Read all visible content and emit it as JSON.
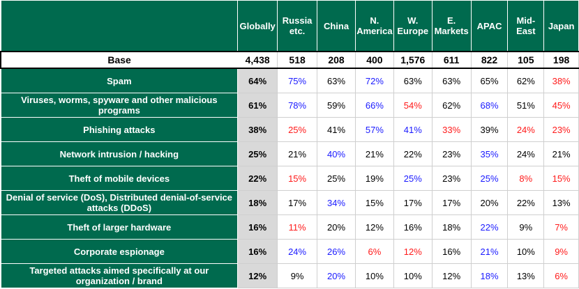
{
  "header": {
    "columns": [
      "Globally",
      "Russia etc.",
      "China",
      "N. America",
      "W. Europe",
      "E. Markets",
      "APAC",
      "Mid-East",
      "Japan"
    ]
  },
  "base": {
    "label": "Base",
    "values": [
      "4,438",
      "518",
      "208",
      "400",
      "1,576",
      "611",
      "822",
      "105",
      "198"
    ]
  },
  "rows": [
    {
      "label": "Spam",
      "values": [
        "64%",
        "75%",
        "63%",
        "72%",
        "63%",
        "63%",
        "65%",
        "62%",
        "38%"
      ],
      "status": [
        "n",
        "h",
        "n",
        "h",
        "n",
        "n",
        "n",
        "n",
        "l"
      ]
    },
    {
      "label": "Viruses, worms, spyware and other malicious programs",
      "values": [
        "61%",
        "78%",
        "59%",
        "66%",
        "54%",
        "62%",
        "68%",
        "51%",
        "45%"
      ],
      "status": [
        "n",
        "h",
        "n",
        "h",
        "l",
        "n",
        "h",
        "n",
        "l"
      ]
    },
    {
      "label": "Phishing attacks",
      "values": [
        "38%",
        "25%",
        "41%",
        "57%",
        "41%",
        "33%",
        "39%",
        "24%",
        "23%"
      ],
      "status": [
        "n",
        "l",
        "n",
        "h",
        "h",
        "l",
        "n",
        "l",
        "l"
      ]
    },
    {
      "label": "Network intrusion / hacking",
      "values": [
        "25%",
        "21%",
        "40%",
        "21%",
        "22%",
        "23%",
        "35%",
        "24%",
        "21%"
      ],
      "status": [
        "n",
        "n",
        "h",
        "n",
        "n",
        "n",
        "h",
        "n",
        "n"
      ]
    },
    {
      "label": "Theft of mobile devices",
      "values": [
        "22%",
        "15%",
        "25%",
        "19%",
        "25%",
        "23%",
        "25%",
        "8%",
        "15%"
      ],
      "status": [
        "n",
        "l",
        "n",
        "n",
        "h",
        "n",
        "h",
        "l",
        "l"
      ]
    },
    {
      "label": "Denial of service (DoS), Distributed denial-of-service attacks (DDoS)",
      "values": [
        "18%",
        "17%",
        "34%",
        "15%",
        "17%",
        "17%",
        "20%",
        "22%",
        "13%"
      ],
      "status": [
        "n",
        "n",
        "h",
        "n",
        "n",
        "n",
        "n",
        "n",
        "n"
      ]
    },
    {
      "label": "Theft of larger hardware",
      "values": [
        "16%",
        "11%",
        "20%",
        "12%",
        "16%",
        "18%",
        "22%",
        "9%",
        "7%"
      ],
      "status": [
        "n",
        "l",
        "n",
        "n",
        "n",
        "n",
        "h",
        "n",
        "l"
      ]
    },
    {
      "label": "Corporate espionage",
      "values": [
        "16%",
        "24%",
        "26%",
        "6%",
        "12%",
        "16%",
        "21%",
        "10%",
        "9%"
      ],
      "status": [
        "n",
        "h",
        "h",
        "l",
        "l",
        "n",
        "h",
        "n",
        "l"
      ]
    },
    {
      "label": "Targeted attacks aimed specifically at our organization / brand",
      "values": [
        "12%",
        "9%",
        "20%",
        "10%",
        "10%",
        "12%",
        "18%",
        "13%",
        "6%"
      ],
      "status": [
        "n",
        "n",
        "h",
        "n",
        "n",
        "n",
        "h",
        "n",
        "l"
      ]
    }
  ],
  "colors": {
    "header_bg": "#006a4e",
    "high": "#1a1aff",
    "low": "#ff1a1a",
    "globally_bg": "#d9d9d9"
  }
}
